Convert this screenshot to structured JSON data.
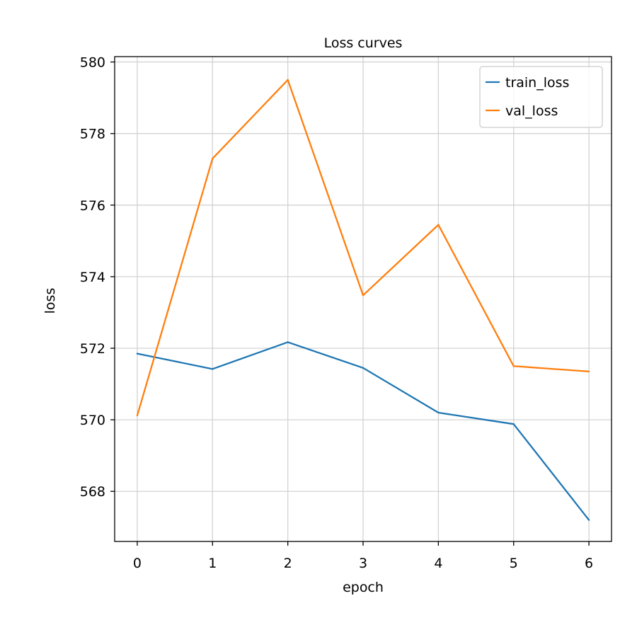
{
  "chart_data": {
    "type": "line",
    "title": "Loss curves",
    "xlabel": "epoch",
    "ylabel": "loss",
    "x": [
      0,
      1,
      2,
      3,
      4,
      5,
      6
    ],
    "xticks": [
      "0",
      "1",
      "2",
      "3",
      "4",
      "5",
      "6"
    ],
    "yticks": [
      "568",
      "570",
      "572",
      "574",
      "576",
      "578",
      "580"
    ],
    "xlim": [
      -0.3,
      6.3
    ],
    "ylim": [
      566.6,
      580.15
    ],
    "grid": true,
    "legend_position": "top-right",
    "series": [
      {
        "name": "train_loss",
        "color": "#1f77b4",
        "values": [
          571.85,
          571.42,
          572.17,
          571.45,
          570.2,
          569.88,
          567.2
        ]
      },
      {
        "name": "val_loss",
        "color": "#ff7f0e",
        "values": [
          570.12,
          577.3,
          579.5,
          573.48,
          575.45,
          571.5,
          571.35
        ]
      }
    ]
  }
}
